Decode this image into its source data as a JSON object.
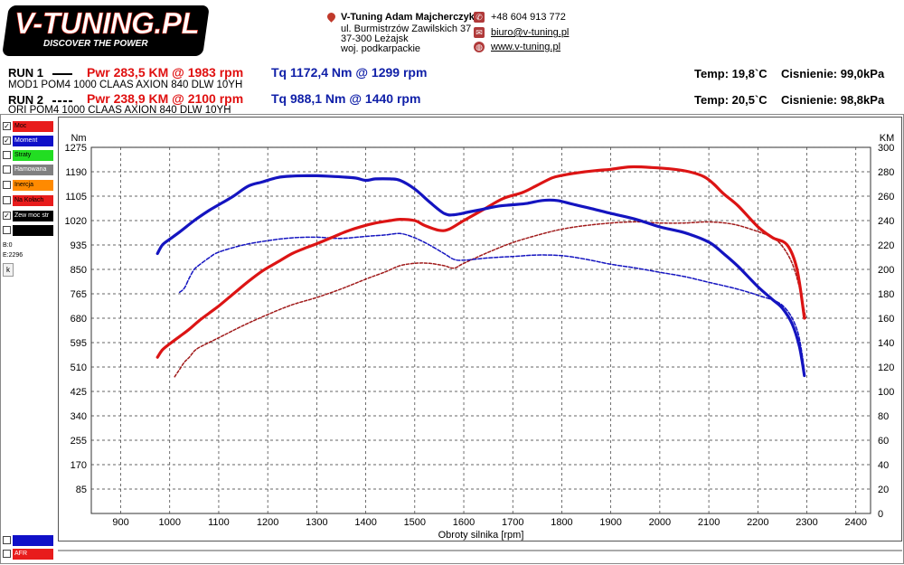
{
  "header": {
    "logo_title": "V-TUNING.PL",
    "logo_slogan": "DISCOVER THE POWER",
    "company": "V-Tuning Adam Majcherczyk",
    "address_line1": "ul. Burmistrzów Zawilskich 37",
    "address_line2": "37-300 Leżajsk",
    "address_line3": "woj. podkarpackie",
    "phone": "+48 604 913 772",
    "email": "biuro@v-tuning.pl",
    "website": "www.v-tuning.pl"
  },
  "runs": [
    {
      "label": "RUN 1",
      "pwr": "Pwr  283,5 KM @ 1983 rpm",
      "tq": "Tq 1172,4 Nm @ 1299 rpm",
      "desc": "MOD1 POM4 1000 CLAAS AXION 840 DLW 10YH",
      "temp": "Temp: 19,8`C",
      "press": "Cisnienie: 99,0kPa"
    },
    {
      "label": "RUN 2",
      "pwr": "Pwr  238,9 KM @ 2100 rpm",
      "tq": "Tq 988,1 Nm @ 1440 rpm",
      "desc": "ORI POM4 1000 CLAAS AXION 840 DLW 10YH",
      "temp": "Temp: 20,5`C",
      "press": "Cisnienie: 98,8kPa"
    }
  ],
  "legend": [
    {
      "label": "Moc",
      "checked": true,
      "color": "#e81c1c"
    },
    {
      "label": "Moment",
      "checked": true,
      "color": "#1010c8"
    },
    {
      "label": "Straty",
      "checked": false,
      "color": "#22dd22"
    },
    {
      "label": "Hamowana",
      "checked": false,
      "color": "#808080"
    },
    {
      "label": "Inercja",
      "checked": false,
      "color": "#ff8a00"
    },
    {
      "label": "Na Kołach",
      "checked": false,
      "color": "#e81c1c"
    },
    {
      "label": "Zew moc str",
      "checked": true,
      "color": "#000000"
    },
    {
      "label": "",
      "checked": false,
      "color": "#000000"
    }
  ],
  "legend_bottom": [
    {
      "label": "",
      "color": "#1010c8"
    },
    {
      "label": "AFR",
      "color": "#e81c1c"
    }
  ],
  "status": {
    "b": "B:0",
    "e": "E:2296",
    "k": "k"
  },
  "chart_data": {
    "type": "line",
    "xlabel": "Obroty silnika [rpm]",
    "ylabel_left": "Nm",
    "ylabel_right": "KM",
    "xlim": [
      840,
      2430
    ],
    "ylim_left": [
      0,
      1275
    ],
    "ylim_right": [
      0,
      300
    ],
    "x_ticks": [
      900,
      1000,
      1100,
      1200,
      1300,
      1400,
      1500,
      1600,
      1700,
      1800,
      1900,
      2000,
      2100,
      2200,
      2300,
      2400
    ],
    "y_left_ticks": [
      85,
      170,
      255,
      340,
      425,
      510,
      595,
      680,
      765,
      850,
      935,
      1020,
      1105,
      1190,
      1275
    ],
    "y_right_ticks": [
      0,
      20,
      40,
      60,
      80,
      100,
      120,
      140,
      160,
      180,
      200,
      220,
      240,
      260,
      280,
      300
    ],
    "grid": true,
    "series": [
      {
        "name": "RUN 1 Tq",
        "axis": "left",
        "color": "#1414c0",
        "width": 3.2,
        "dash": "",
        "x": [
          975,
          985,
          1000,
          1020,
          1050,
          1080,
          1100,
          1130,
          1160,
          1190,
          1220,
          1250,
          1280,
          1300,
          1320,
          1350,
          1380,
          1400,
          1420,
          1450,
          1470,
          1500,
          1530,
          1560,
          1580,
          1610,
          1640,
          1670,
          1700,
          1730,
          1760,
          1790,
          1820,
          1860,
          1900,
          1950,
          2000,
          2050,
          2100,
          2130,
          2160,
          2200,
          2230,
          2250,
          2270,
          2285,
          2295
        ],
        "y": [
          905,
          935,
          955,
          980,
          1020,
          1055,
          1075,
          1105,
          1140,
          1155,
          1170,
          1175,
          1176,
          1176,
          1175,
          1172,
          1168,
          1160,
          1165,
          1165,
          1160,
          1130,
          1085,
          1045,
          1040,
          1050,
          1060,
          1070,
          1075,
          1080,
          1090,
          1090,
          1078,
          1062,
          1045,
          1025,
          998,
          978,
          945,
          905,
          860,
          790,
          745,
          715,
          660,
          580,
          480
        ]
      },
      {
        "name": "RUN 2 Tq",
        "axis": "left",
        "color": "#1414c0",
        "width": 1.5,
        "dash": "4,2",
        "x": [
          1020,
          1030,
          1040,
          1050,
          1060,
          1080,
          1100,
          1150,
          1200,
          1250,
          1300,
          1350,
          1400,
          1440,
          1470,
          1500,
          1530,
          1560,
          1580,
          1600,
          1650,
          1700,
          1750,
          1800,
          1850,
          1900,
          1950,
          2000,
          2050,
          2100,
          2150,
          2200,
          2250,
          2280,
          2295
        ],
        "y": [
          770,
          785,
          820,
          850,
          865,
          890,
          910,
          935,
          950,
          960,
          962,
          958,
          965,
          970,
          975,
          960,
          935,
          905,
          885,
          882,
          890,
          895,
          900,
          898,
          885,
          868,
          855,
          840,
          825,
          805,
          785,
          760,
          725,
          640,
          500
        ]
      },
      {
        "name": "RUN 1 Pwr",
        "axis": "right",
        "color": "#dc1414",
        "width": 3.2,
        "dash": "",
        "x": [
          975,
          985,
          1000,
          1020,
          1040,
          1060,
          1080,
          1100,
          1130,
          1160,
          1190,
          1220,
          1250,
          1280,
          1300,
          1330,
          1360,
          1390,
          1420,
          1450,
          1470,
          1500,
          1520,
          1550,
          1570,
          1600,
          1640,
          1680,
          1720,
          1750,
          1780,
          1800,
          1830,
          1870,
          1900,
          1940,
          1983,
          2030,
          2060,
          2090,
          2110,
          2130,
          2160,
          2200,
          2230,
          2260,
          2280,
          2295
        ],
        "y": [
          128,
          134,
          139,
          145,
          151,
          158,
          164,
          170,
          180,
          190,
          199,
          206,
          213,
          218,
          221,
          226,
          231,
          235,
          238,
          240,
          241,
          240,
          236,
          232,
          233,
          240,
          249,
          258,
          263,
          269,
          275,
          277,
          279,
          281,
          282,
          284,
          283.5,
          282,
          280,
          276,
          270,
          262,
          252,
          235,
          226,
          220,
          200,
          160
        ]
      },
      {
        "name": "RUN 2 Pwr",
        "axis": "right",
        "color": "#a01a1a",
        "width": 1.5,
        "dash": "3,2",
        "x": [
          1010,
          1020,
          1030,
          1040,
          1050,
          1060,
          1080,
          1100,
          1150,
          1200,
          1250,
          1300,
          1350,
          1400,
          1440,
          1470,
          1500,
          1530,
          1560,
          1580,
          1600,
          1650,
          1700,
          1750,
          1800,
          1850,
          1900,
          1950,
          2000,
          2050,
          2100,
          2150,
          2200,
          2230,
          2250,
          2270,
          2285,
          2298
        ],
        "y": [
          112,
          118,
          124,
          128,
          133,
          136,
          140,
          144,
          154,
          163,
          171,
          177,
          184,
          192,
          198,
          203,
          205,
          205,
          203,
          201,
          205,
          214,
          222,
          228,
          233,
          236,
          238,
          239,
          238,
          238,
          238.9,
          237,
          231,
          226,
          219,
          205,
          185,
          160
        ]
      }
    ]
  }
}
